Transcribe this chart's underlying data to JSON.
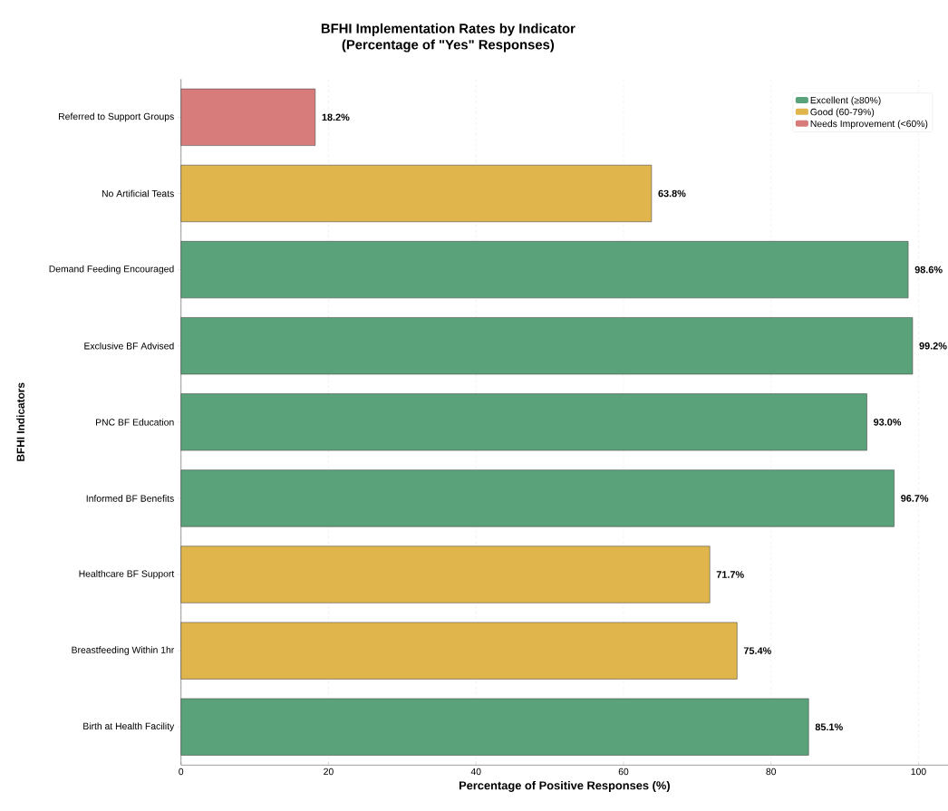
{
  "chart_data": {
    "type": "bar",
    "orientation": "horizontal",
    "title": "BFHI Implementation Rates by Indicator\n(Percentage of \"Yes\" Responses)",
    "xlabel": "Percentage of Positive Responses (%)",
    "ylabel": "BFHI Indicators",
    "categories": [
      "Referred to Support Groups",
      "No Artificial Teats",
      "Demand Feeding Encouraged",
      "Exclusive BF Advised",
      "PNC BF Education",
      "Informed BF Benefits",
      "Healthcare BF Support",
      "Breastfeeding Within 1hr",
      "Birth at Health Facility"
    ],
    "series": [
      {
        "name": "Excellent (≥80%)",
        "color": "#5aa27a",
        "values": [
          null,
          null,
          98.6,
          99.2,
          93.0,
          96.7,
          null,
          null,
          85.1
        ],
        "value_labels": [
          null,
          null,
          "98.6%",
          "99.2%",
          "93.0%",
          "96.7%",
          null,
          null,
          "85.1%"
        ]
      },
      {
        "name": "Good (60-79%)",
        "color": "#e0b64c",
        "values": [
          null,
          63.8,
          null,
          null,
          null,
          null,
          71.7,
          75.4,
          null
        ],
        "value_labels": [
          null,
          "63.8%",
          null,
          null,
          null,
          null,
          "71.7%",
          "75.4%",
          null
        ]
      },
      {
        "name": "Needs Improvement (<60%)",
        "color": "#d77c7a",
        "values": [
          18.2,
          null,
          null,
          null,
          null,
          null,
          null,
          null,
          null
        ],
        "value_labels": [
          "18.2%",
          null,
          null,
          null,
          null,
          null,
          null,
          null,
          null
        ]
      }
    ],
    "xlim": [
      0,
      104
    ],
    "xticks": [
      0,
      20,
      40,
      60,
      80,
      100
    ],
    "grid": "x",
    "legend": "top right"
  }
}
